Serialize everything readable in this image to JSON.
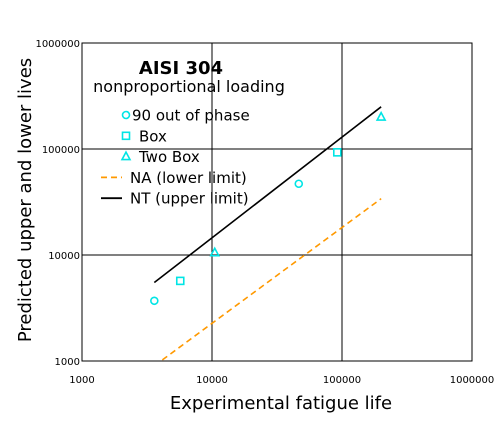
{
  "chart_data": {
    "type": "scatter",
    "title": "AISI 304",
    "subtitle": "nonproportional loading",
    "xlabel": "Experimental fatigue life",
    "ylabel": "Predicted upper and lower lives",
    "xscale": "log",
    "yscale": "log",
    "xlim": [
      1000,
      1000000
    ],
    "ylim": [
      1000,
      1000000
    ],
    "x_ticks": [
      "1000",
      "10000",
      "100000",
      "1000000"
    ],
    "y_ticks": [
      "1000",
      "10000",
      "100000",
      "1000000"
    ],
    "grid": "major decades",
    "legend_position": "top-left",
    "series": [
      {
        "name": "90 out of phase",
        "kind": "points",
        "marker": "circle",
        "color": "#00e5e5",
        "points": [
          [
            3600,
            3700
          ],
          [
            46500,
            47000
          ]
        ]
      },
      {
        "name": "Box",
        "kind": "points",
        "marker": "square",
        "color": "#00e5e5",
        "points": [
          [
            5700,
            5700
          ],
          [
            92000,
            93000
          ]
        ]
      },
      {
        "name": "Two Box",
        "kind": "points",
        "marker": "triangle",
        "color": "#00e5e5",
        "points": [
          [
            10500,
            10500
          ],
          [
            200000,
            200000
          ]
        ]
      },
      {
        "name": "NA (lower limit)",
        "kind": "line",
        "style": "dashed",
        "color": "#ff9900",
        "points": [
          [
            3600,
            900
          ],
          [
            200000,
            34000
          ]
        ]
      },
      {
        "name": "NT (upper limit)",
        "kind": "line",
        "style": "solid",
        "color": "#000000",
        "points": [
          [
            3600,
            5500
          ],
          [
            200000,
            250000
          ]
        ]
      }
    ]
  }
}
